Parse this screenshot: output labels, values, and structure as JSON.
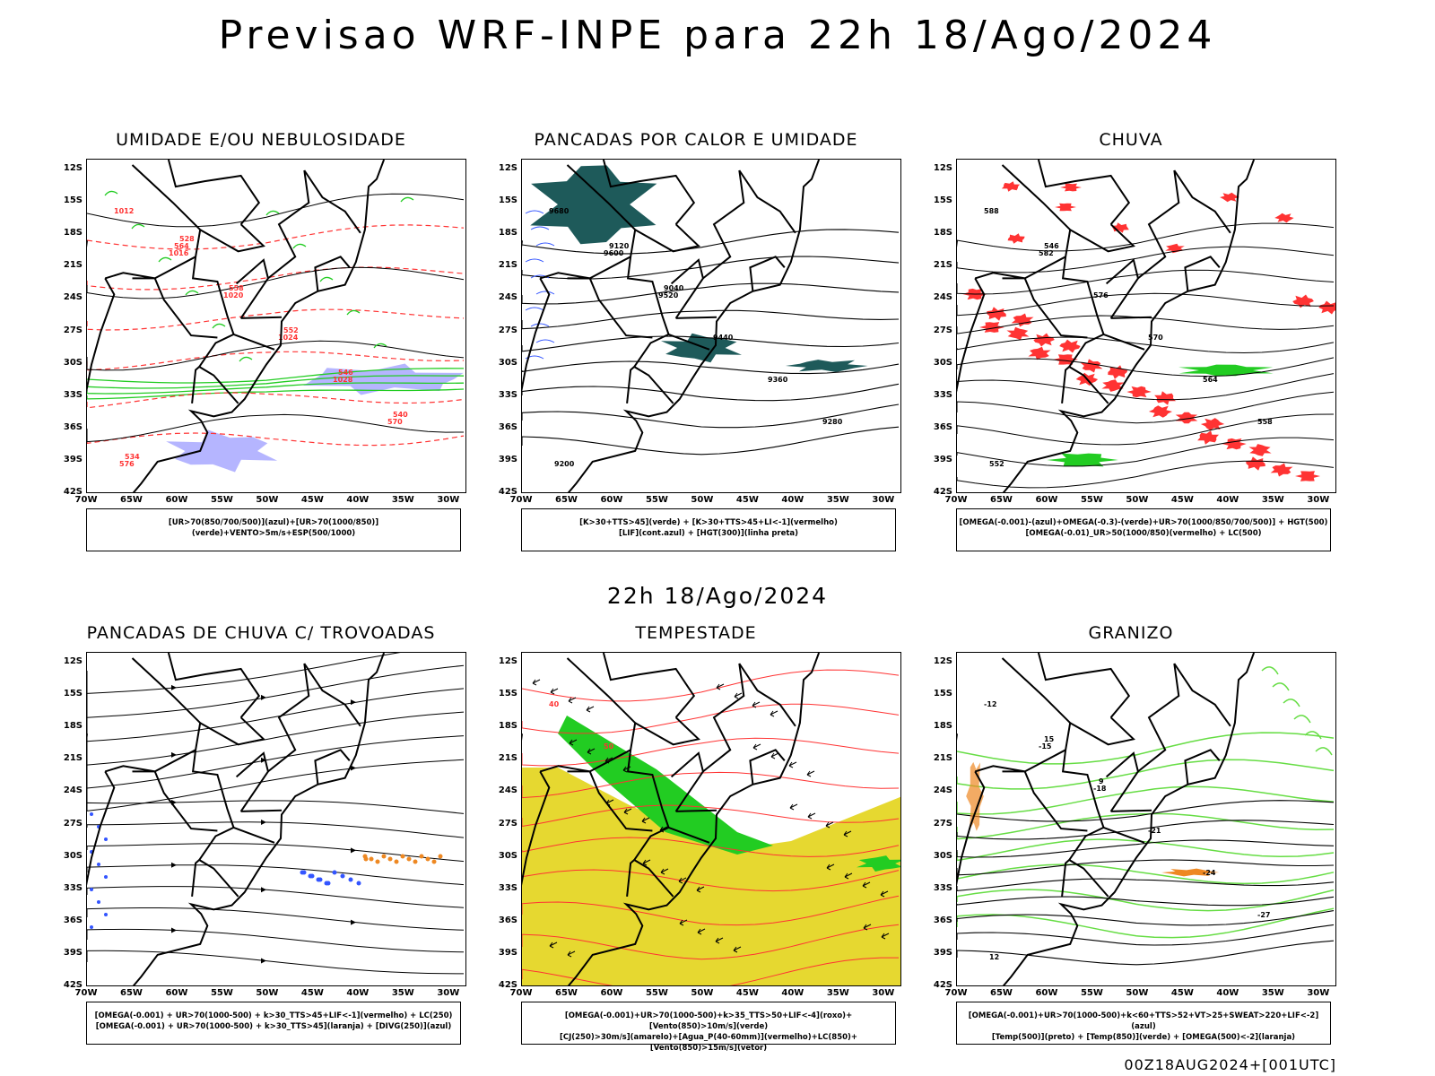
{
  "header": {
    "title": "Previsao WRF-INPE  para 22h 18/Ago/2024",
    "subtitle": "22h 18/Ago/2024",
    "footer": "00Z18AUG2024+[001UTC]"
  },
  "axes": {
    "lat_labels": [
      "12S",
      "15S",
      "18S",
      "21S",
      "24S",
      "27S",
      "30S",
      "33S",
      "36S",
      "39S",
      "42S"
    ],
    "lon_labels": [
      "70W",
      "65W",
      "60W",
      "55W",
      "50W",
      "45W",
      "40W",
      "35W",
      "30W"
    ]
  },
  "panels": [
    {
      "title": "UMIDADE E/OU NEBULOSIDADE",
      "legend": [
        "[UR>70(850/700/500)](azul)+[UR>70(1000/850)](verde)+VENTO>5m/s+ESP(500/1000)"
      ],
      "labels": [
        "1012",
        "1016",
        "1020",
        "1024",
        "1028",
        "570",
        "576",
        "564",
        "558",
        "552",
        "546",
        "540",
        "534",
        "528"
      ]
    },
    {
      "title": "PANCADAS POR CALOR E UMIDADE",
      "legend": [
        "[K>30+TTS>45](verde) + [K>30+TTS>45+LI<-1](vermelho)",
        "[LIF](cont.azul) + [HGT(300)](linha preta)"
      ],
      "labels": [
        "9680",
        "9600",
        "9520",
        "9440",
        "9360",
        "9280",
        "9200",
        "9120",
        "9040"
      ]
    },
    {
      "title": "CHUVA",
      "legend": [
        "[OMEGA(-0.001)-(azul)+OMEGA(-0.3)-(verde)+UR>70(1000/850/700/500)] + HGT(500)",
        "[OMEGA(-0.01)_UR>50(1000/850)(vermelho) + LC(500)"
      ],
      "labels": [
        "588",
        "582",
        "576",
        "570",
        "564",
        "558",
        "552",
        "546"
      ]
    },
    {
      "title": "PANCADAS DE CHUVA C/ TROVOADAS",
      "legend": [
        "[OMEGA(-0.001) + UR>70(1000-500) + k>30_TTS>45+LIF<-1](vermelho) + LC(250)",
        "[OMEGA(-0.001) + UR>70(1000-500) + k>30_TTS>45](laranja) + [DIVG(250)](azul)"
      ],
      "labels": []
    },
    {
      "title": "TEMPESTADE",
      "legend": [
        "[OMEGA(-0.001)+UR>70(1000-500)+k>35_TTS>50+LIF<-4](roxo)+[Vento(850)>10m/s](verde)",
        "[CJ(250)>30m/s](amarelo)+[Agua_P(40-60mm)](vermelho)+LC(850)+[Vento(850)>15m/s](vetor)"
      ],
      "labels": [
        "40",
        "50"
      ]
    },
    {
      "title": "GRANIZO",
      "legend": [
        "[OMEGA(-0.001)+UR>70(1000-500)+k<60+TTS>52+VT>25+SWEAT>220+LIF<-2](azul)",
        "[Temp(500)](preto) + [Temp(850)](verde) + [OMEGA(500)<-2](laranja)"
      ],
      "labels": [
        "-12",
        "-15",
        "-18",
        "-21",
        "-24",
        "-27",
        "12",
        "15",
        "9"
      ]
    }
  ],
  "colors": {
    "border": "#000000",
    "red": "#ff3333",
    "green": "#22cc22",
    "blue": "#3355ff",
    "lavender": "#a8a8ff",
    "teal": "#1e5a5a",
    "yellow": "#e6d830",
    "orange": "#ee8822",
    "lightgreen": "#66dd44"
  }
}
